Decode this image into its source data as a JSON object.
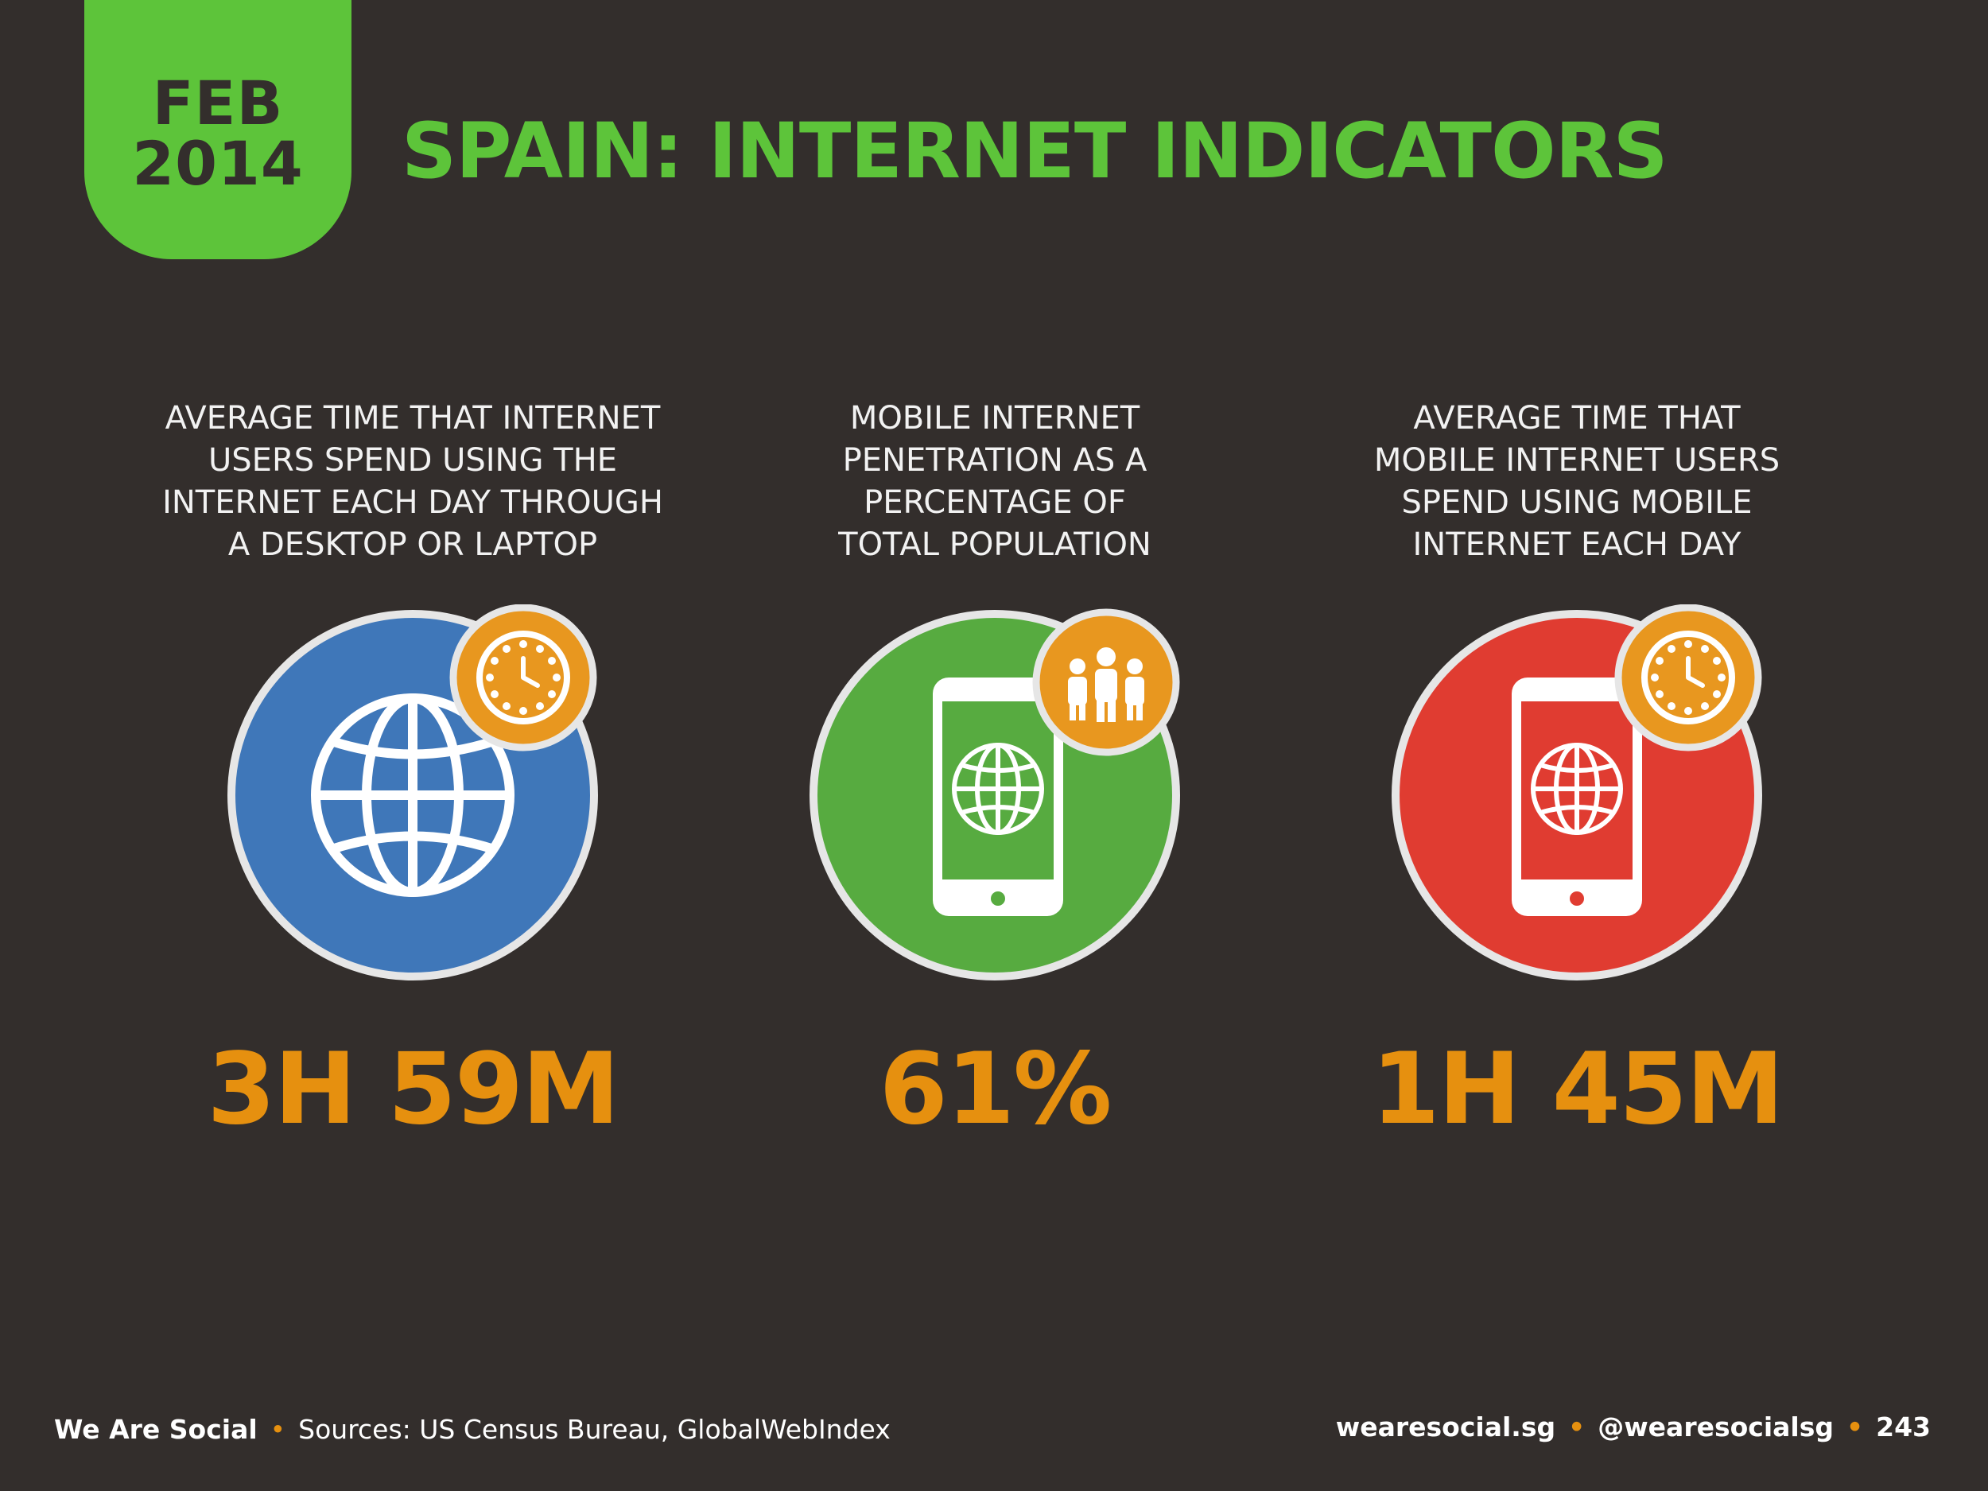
{
  "date_tab": {
    "month": "FEB",
    "year": "2014"
  },
  "title": "SPAIN: INTERNET INDICATORS",
  "indicators": [
    {
      "description_lines": [
        "AVERAGE TIME THAT INTERNET",
        "USERS SPEND USING THE",
        "INTERNET EACH DAY THROUGH",
        "A DESKTOP OR LAPTOP"
      ],
      "value": "3H 59M",
      "circle_color": "#3f77b9",
      "icon": "globe-icon",
      "badge_icon": "clock-icon"
    },
    {
      "description_lines": [
        "MOBILE INTERNET",
        "PENETRATION AS A",
        "PERCENTAGE OF",
        "TOTAL POPULATION"
      ],
      "value": "61%",
      "circle_color": "#57ab40",
      "icon": "mobile-globe-icon",
      "badge_icon": "people-icon"
    },
    {
      "description_lines": [
        "AVERAGE TIME THAT",
        "MOBILE INTERNET USERS",
        "SPEND USING MOBILE",
        "INTERNET EACH DAY"
      ],
      "value": "1H 45M",
      "circle_color": "#e03c31",
      "icon": "mobile-globe-icon",
      "badge_icon": "clock-icon"
    }
  ],
  "footer": {
    "brand": "We Are Social",
    "sources": "Sources: US Census Bureau, GlobalWebIndex",
    "website": "wearesocial.sg",
    "handle": "@wearesocialsg",
    "page_number": "243"
  },
  "colors": {
    "background": "#332e2c",
    "accent_green": "#5dc43a",
    "value_orange": "#e6900f",
    "badge_orange": "#e8971f"
  }
}
